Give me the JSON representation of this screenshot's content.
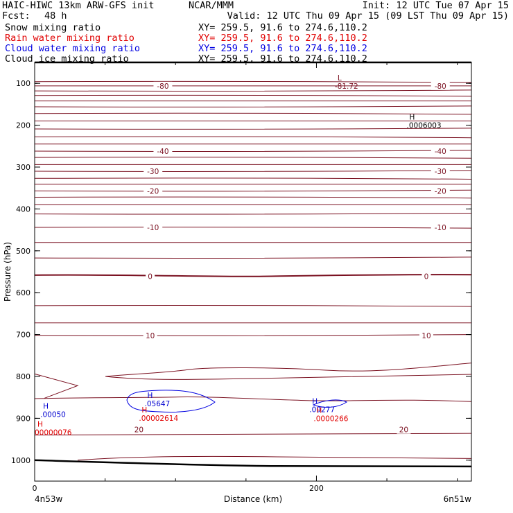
{
  "header": {
    "model": "HAIC-HIWC 13km ARW-GFS init",
    "org": "NCAR/MMM",
    "init": "Init: 12 UTC Tue 07 Apr 15",
    "fcst_label": "Fcst:",
    "fcst_value": "48 h",
    "valid": "Valid: 12 UTC Thu 09 Apr 15 (09 LST Thu 09 Apr 15)",
    "fields": [
      {
        "name": "Snow mixing ratio",
        "xy": "XY= 259.5, 91.6 to 274.6,110.2",
        "color": "#000000"
      },
      {
        "name": "Rain water mixing ratio",
        "xy": "XY= 259.5, 91.6 to 274.6,110.2",
        "color": "#e00000"
      },
      {
        "name": "Cloud water mixing ratio",
        "xy": "XY= 259.5, 91.6 to 274.6,110.2",
        "color": "#0000e0"
      },
      {
        "name": "Cloud ice mixing ratio",
        "xy": "XY= 259.5, 91.6 to 274.6,110.2",
        "color": "#000000"
      }
    ]
  },
  "chart_data": {
    "type": "line",
    "title": "",
    "xlabel": "Distance (km)",
    "ylabel": "Pressure (hPa)",
    "x_ticks": [
      0,
      200
    ],
    "x_minor_step": 50,
    "y_ticks": [
      100,
      200,
      300,
      400,
      500,
      600,
      700,
      800,
      900,
      1000
    ],
    "left_end_label": "4n53w",
    "right_end_label": "6n51w",
    "xlim": [
      0,
      310
    ],
    "ylim": [
      50,
      1050
    ],
    "grid": false,
    "temperature_contour_labels": [
      {
        "text": "-80",
        "x": [
          91,
          288
        ],
        "p": 106
      },
      {
        "text": "-40",
        "x": [
          91,
          288
        ],
        "p": 262
      },
      {
        "text": "-30",
        "x": [
          84,
          288
        ],
        "p": 310
      },
      {
        "text": "-20",
        "x": [
          84,
          288
        ],
        "p": 357
      },
      {
        "text": "-10",
        "x": [
          84,
          288
        ],
        "p": 444
      },
      {
        "text": "0",
        "x": [
          82,
          278
        ],
        "p": 561
      },
      {
        "text": "10",
        "x": [
          82,
          278
        ],
        "p": 702
      },
      {
        "text": "20",
        "x": [
          74,
          262
        ],
        "p": 927
      }
    ],
    "extrema": [
      {
        "marker": "L",
        "value": "-81.72",
        "x": 213,
        "p": 96,
        "color": "#7a1020"
      },
      {
        "marker": "H",
        "value": ".0006003",
        "x": 264,
        "p": 190,
        "color": "#000000"
      },
      {
        "marker": "H",
        "value": ".00050",
        "x": 4,
        "p": 880,
        "color": "#0000d0"
      },
      {
        "marker": "H",
        "value": "00000076",
        "x": 0,
        "p": 923,
        "color": "#e00000"
      },
      {
        "marker": "H",
        "value": ".05647",
        "x": 78,
        "p": 855,
        "color": "#0000d0"
      },
      {
        "marker": "H",
        "value": ".00002614",
        "x": 74,
        "p": 889,
        "color": "#e00000"
      },
      {
        "marker": "H",
        "value": ".00277",
        "x": 195,
        "p": 869,
        "color": "#0000d0"
      },
      {
        "marker": "H",
        "value": ".0000266",
        "x": 198,
        "p": 890,
        "color": "#e00000"
      }
    ]
  }
}
